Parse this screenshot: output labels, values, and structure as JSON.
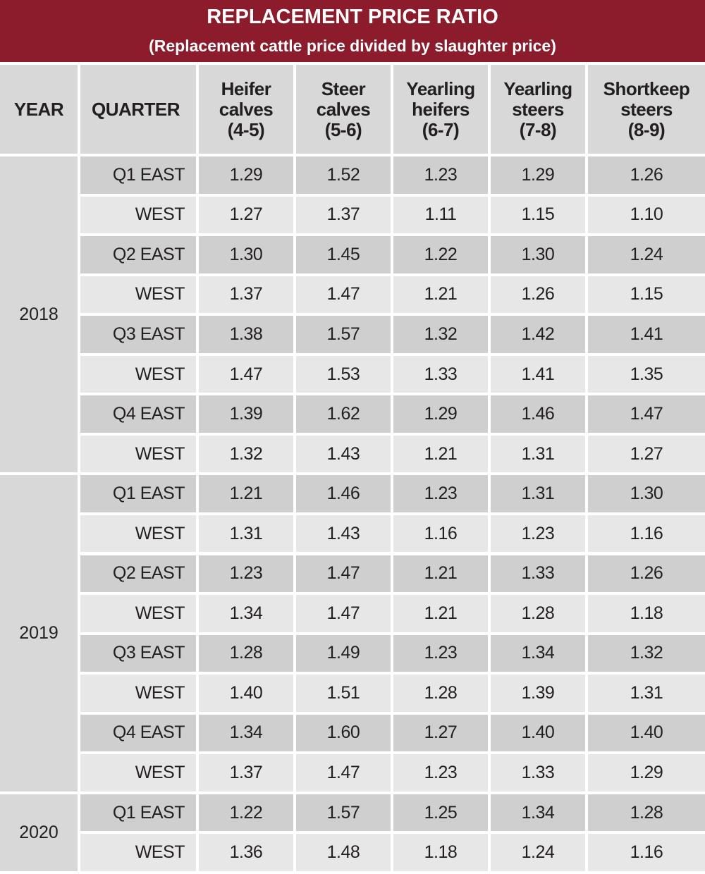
{
  "header": {
    "title": "REPLACEMENT PRICE RATIO",
    "subtitle": "(Replacement cattle price divided by slaughter price)"
  },
  "table": {
    "columns": [
      [
        "YEAR"
      ],
      [
        "QUARTER"
      ],
      [
        "Heifer",
        "calves",
        "(4-5)"
      ],
      [
        "Steer",
        "calves",
        "(5-6)"
      ],
      [
        "Yearling",
        "heifers",
        "(6-7)"
      ],
      [
        "Yearling",
        "steers",
        "(7-8)"
      ],
      [
        "Shortkeep",
        "steers",
        "(8-9)"
      ]
    ],
    "groups": [
      {
        "year": "2018",
        "rows": [
          {
            "quarter": "Q1 EAST",
            "values": [
              "1.29",
              "1.52",
              "1.23",
              "1.29",
              "1.26"
            ]
          },
          {
            "quarter": "WEST",
            "values": [
              "1.27",
              "1.37",
              "1.11",
              "1.15",
              "1.10"
            ]
          },
          {
            "quarter": "Q2 EAST",
            "values": [
              "1.30",
              "1.45",
              "1.22",
              "1.30",
              "1.24"
            ]
          },
          {
            "quarter": "WEST",
            "values": [
              "1.37",
              "1.47",
              "1.21",
              "1.26",
              "1.15"
            ]
          },
          {
            "quarter": "Q3 EAST",
            "values": [
              "1.38",
              "1.57",
              "1.32",
              "1.42",
              "1.41"
            ]
          },
          {
            "quarter": "WEST",
            "values": [
              "1.47",
              "1.53",
              "1.33",
              "1.41",
              "1.35"
            ]
          },
          {
            "quarter": "Q4 EAST",
            "values": [
              "1.39",
              "1.62",
              "1.29",
              "1.46",
              "1.47"
            ]
          },
          {
            "quarter": "WEST",
            "values": [
              "1.32",
              "1.43",
              "1.21",
              "1.31",
              "1.27"
            ]
          }
        ]
      },
      {
        "year": "2019",
        "rows": [
          {
            "quarter": "Q1 EAST",
            "values": [
              "1.21",
              "1.46",
              "1.23",
              "1.31",
              "1.30"
            ]
          },
          {
            "quarter": "WEST",
            "values": [
              "1.31",
              "1.43",
              "1.16",
              "1.23",
              "1.16"
            ]
          },
          {
            "quarter": "Q2 EAST",
            "values": [
              "1.23",
              "1.47",
              "1.21",
              "1.33",
              "1.26"
            ]
          },
          {
            "quarter": "WEST",
            "values": [
              "1.34",
              "1.47",
              "1.21",
              "1.28",
              "1.18"
            ]
          },
          {
            "quarter": "Q3 EAST",
            "values": [
              "1.28",
              "1.49",
              "1.23",
              "1.34",
              "1.32"
            ]
          },
          {
            "quarter": "WEST",
            "values": [
              "1.40",
              "1.51",
              "1.28",
              "1.39",
              "1.31"
            ]
          },
          {
            "quarter": "Q4 EAST",
            "values": [
              "1.34",
              "1.60",
              "1.27",
              "1.40",
              "1.40"
            ]
          },
          {
            "quarter": "WEST",
            "values": [
              "1.37",
              "1.47",
              "1.23",
              "1.33",
              "1.29"
            ]
          }
        ]
      },
      {
        "year": "2020",
        "rows": [
          {
            "quarter": "Q1 EAST",
            "values": [
              "1.22",
              "1.57",
              "1.25",
              "1.34",
              "1.28"
            ]
          },
          {
            "quarter": "WEST",
            "values": [
              "1.36",
              "1.48",
              "1.18",
              "1.24",
              "1.16"
            ]
          }
        ]
      }
    ]
  }
}
